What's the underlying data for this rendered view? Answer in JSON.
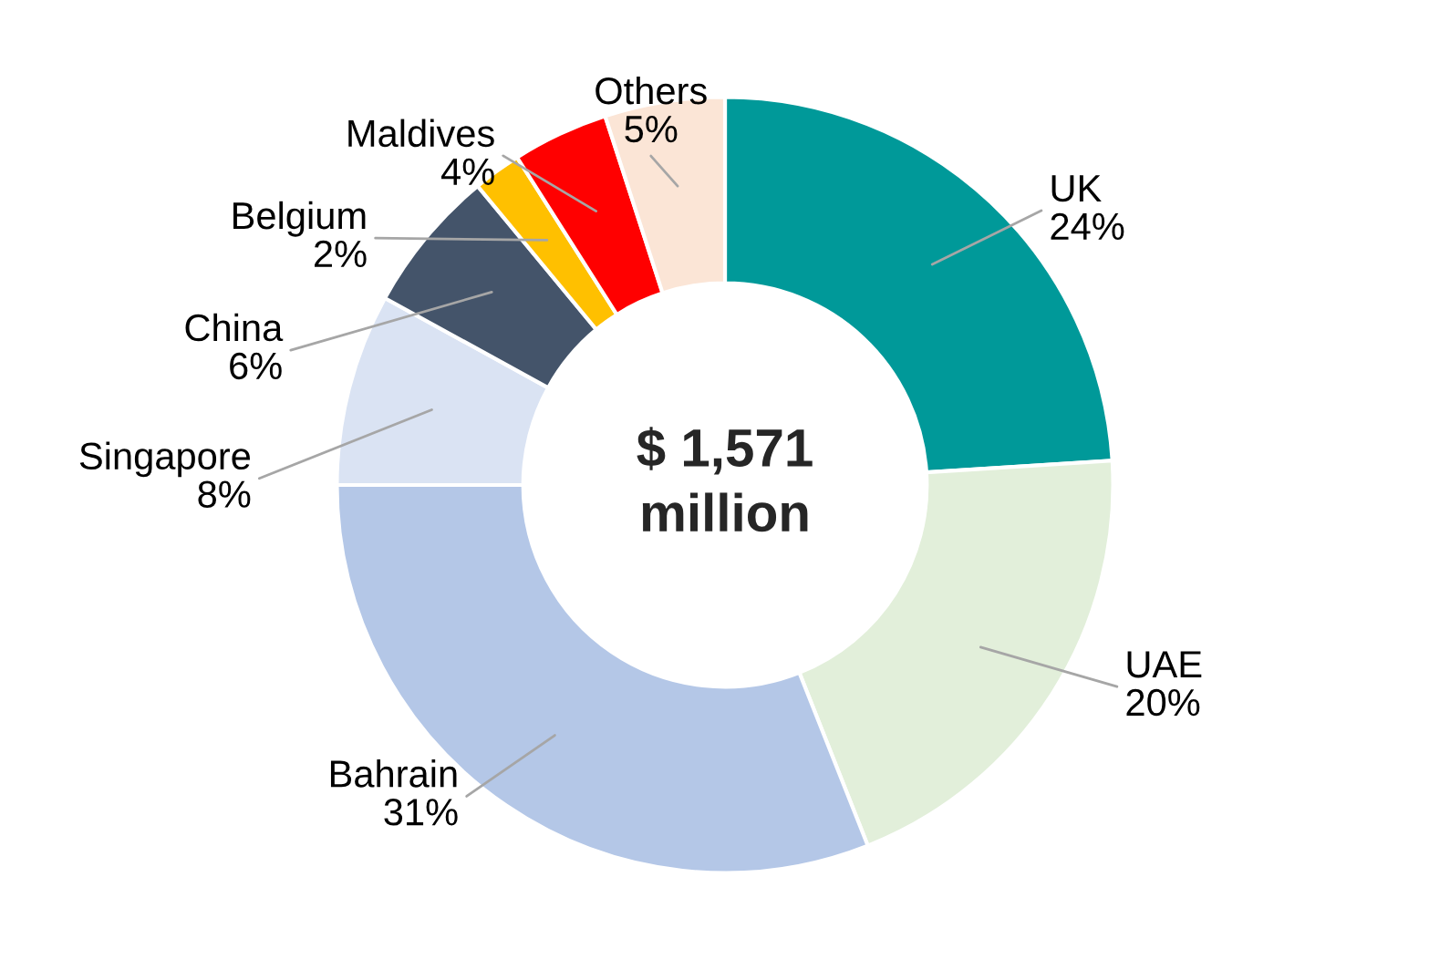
{
  "chart_data": {
    "type": "donut",
    "categories": [
      "UK",
      "UAE",
      "Bahrain",
      "Singapore",
      "China",
      "Belgium",
      "Maldives",
      "Others"
    ],
    "values": [
      24,
      20,
      31,
      8,
      6,
      2,
      4,
      5
    ],
    "colors": [
      "#009999",
      "#e2efda",
      "#b4c7e7",
      "#dae3f3",
      "#44546a",
      "#ffc000",
      "#ff0000",
      "#fbe5d6"
    ],
    "annotations": [
      "$ 1,571\nmillion"
    ],
    "value_labels": [
      "24%",
      "20%",
      "31%",
      "8%",
      "6%",
      "2%",
      "4%",
      "5%"
    ],
    "legend": false
  }
}
